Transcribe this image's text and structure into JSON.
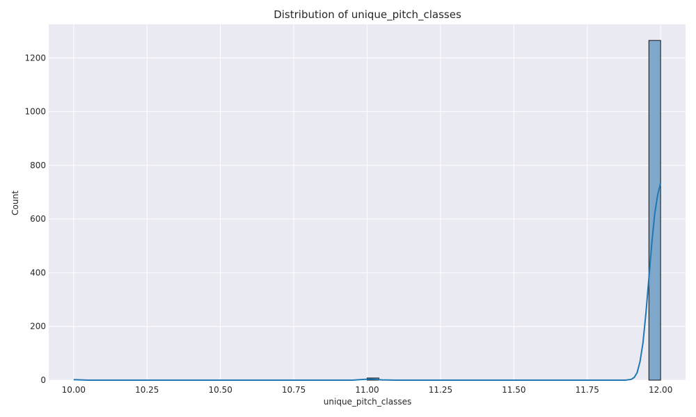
{
  "chart_data": {
    "type": "bar",
    "title": "Distribution of unique_pitch_classes",
    "xlabel": "unique_pitch_classes",
    "ylabel": "Count",
    "xlim": [
      9.915,
      12.085
    ],
    "ylim": [
      0,
      1325
    ],
    "grid": true,
    "x_ticks": [
      10.0,
      10.25,
      10.5,
      10.75,
      11.0,
      11.25,
      11.5,
      11.75,
      12.0
    ],
    "x_tick_labels": [
      "10.00",
      "10.25",
      "10.50",
      "10.75",
      "11.00",
      "11.25",
      "11.50",
      "11.75",
      "12.00"
    ],
    "y_ticks": [
      0,
      200,
      400,
      600,
      800,
      1000,
      1200
    ],
    "y_tick_labels": [
      "0",
      "200",
      "400",
      "600",
      "800",
      "1000",
      "1200"
    ],
    "bin_width": 0.04,
    "bins": [
      {
        "x0": 11.0,
        "x1": 11.04,
        "count": 8
      },
      {
        "x0": 11.96,
        "x1": 12.0,
        "count": 1265
      }
    ],
    "kde": {
      "x": [
        10.0,
        10.05,
        10.5,
        10.95,
        10.99,
        11.01,
        11.03,
        11.05,
        11.1,
        11.5,
        11.88,
        11.9,
        11.91,
        11.92,
        11.93,
        11.94,
        11.95,
        11.96,
        11.97,
        11.98,
        11.99,
        12.0
      ],
      "y": [
        2,
        0,
        0,
        0,
        3,
        4,
        3,
        1,
        0,
        0,
        0,
        3,
        10,
        28,
        70,
        140,
        250,
        380,
        510,
        620,
        690,
        735
      ]
    },
    "colors": {
      "bar_fill": "#7ea7c9",
      "bar_edge": "#111111",
      "kde_line": "#1f77b4",
      "plot_bg": "#eaeaf2",
      "grid": "#ffffff"
    }
  }
}
